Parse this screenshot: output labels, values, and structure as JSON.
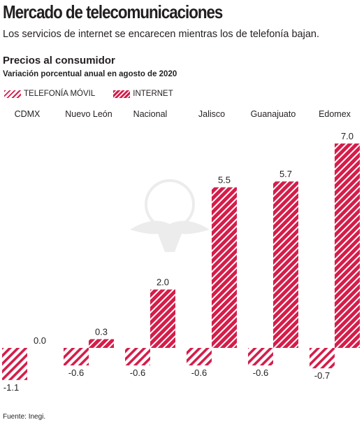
{
  "header": {
    "title": "Mercado de telecomunicaciones",
    "subtitle": "Los servicios de internet se encarecen mientras los de telefonía bajan."
  },
  "colors": {
    "accent": "#d51d4a",
    "text": "#231f20"
  },
  "chart_data": {
    "type": "bar",
    "title": "Precios al consumidor",
    "subtitle": "Variación porcentual anual en agosto de 2020",
    "xlabel": "",
    "ylabel": "",
    "categories": [
      "CDMX",
      "Nuevo León",
      "Nacional",
      "Jalisco",
      "Guanajuato",
      "Edomex"
    ],
    "series": [
      {
        "name": "TELEFONÍA MÓVIL",
        "values": [
          -1.1,
          -0.6,
          -0.6,
          -0.6,
          -0.6,
          -0.7
        ],
        "labels": [
          "-1.1",
          "-0.6",
          "-0.6",
          "-0.6",
          "-0.6",
          "-0.7"
        ]
      },
      {
        "name": "INTERNET",
        "values": [
          0.0,
          0.3,
          2.0,
          5.5,
          5.7,
          7.0
        ],
        "labels": [
          "0.0",
          "0.3",
          "2.0",
          "5.5",
          "5.7",
          "7.0"
        ]
      }
    ],
    "ylim": [
      -1.1,
      7.0
    ],
    "grid": false,
    "legend": "top-left"
  },
  "footer": {
    "source": "Fuente: Inegi."
  }
}
